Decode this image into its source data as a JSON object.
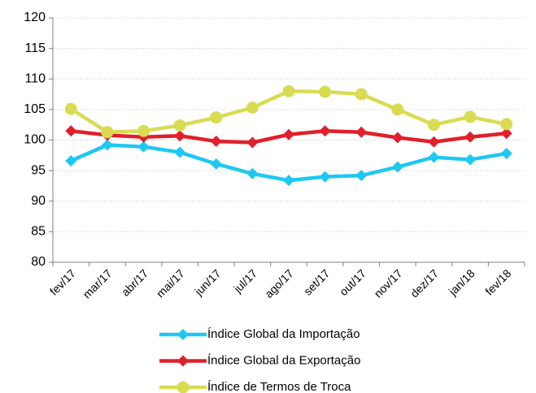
{
  "chart_data": {
    "type": "line",
    "categories": [
      "fev/17",
      "mar/17",
      "abr/17",
      "mai/17",
      "jun/17",
      "jul/17",
      "ago/17",
      "set/17",
      "out/17",
      "nov/17",
      "dez/17",
      "jan/18",
      "fev/18"
    ],
    "series": [
      {
        "name": "Índice Global da Importação",
        "color": "#1ec8f2",
        "marker": "diamond",
        "values": [
          96.6,
          99.2,
          98.9,
          98.0,
          96.1,
          94.5,
          93.4,
          94.0,
          94.2,
          95.6,
          97.2,
          96.8,
          97.8
        ]
      },
      {
        "name": "Índice Global da Exportação",
        "color": "#e0202a",
        "marker": "diamond",
        "values": [
          101.5,
          100.8,
          100.5,
          100.7,
          99.8,
          99.6,
          100.9,
          101.5,
          101.3,
          100.4,
          99.7,
          100.5,
          101.1
        ]
      },
      {
        "name": "Índice de Termos de Troca",
        "color": "#d9dc52",
        "marker": "circle",
        "values": [
          105.1,
          101.3,
          101.5,
          102.4,
          103.7,
          105.3,
          108.0,
          107.9,
          107.5,
          105.0,
          102.5,
          103.8,
          102.6
        ]
      }
    ],
    "ylim": [
      80,
      120
    ],
    "yticks": [
      80,
      85,
      90,
      95,
      100,
      105,
      110,
      115,
      120
    ],
    "grid": true
  }
}
